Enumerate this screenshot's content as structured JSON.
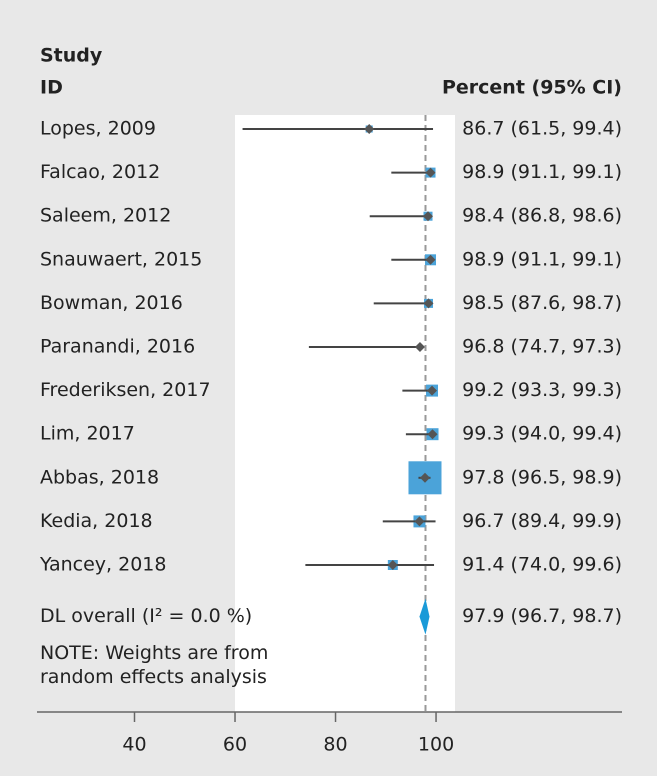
{
  "chart_data": {
    "type": "forest",
    "study_header": [
      "Study",
      "ID"
    ],
    "estimate_header": "Percent (95% CI)",
    "categories": [
      "Lopes, 2009",
      "Falcao, 2012",
      "Saleem, 2012",
      "Snauwaert, 2015",
      "Bowman, 2016",
      "Paranandi, 2016",
      "Frederiksen, 2017",
      "Lim, 2017",
      "Abbas, 2018",
      "Kedia, 2018",
      "Yancey, 2018"
    ],
    "values": [
      86.7,
      98.9,
      98.4,
      98.9,
      98.5,
      96.8,
      99.2,
      99.3,
      97.8,
      96.7,
      91.4
    ],
    "lower": [
      61.5,
      91.1,
      86.8,
      91.1,
      87.6,
      74.7,
      93.3,
      94.0,
      96.5,
      89.4,
      74.0
    ],
    "upper": [
      99.4,
      99.1,
      98.6,
      99.1,
      98.7,
      97.3,
      99.3,
      99.4,
      98.9,
      99.9,
      99.6
    ],
    "weights": [
      2.4,
      4.8,
      3.9,
      5.8,
      3.9,
      1.2,
      6.9,
      6.9,
      52.4,
      6.9,
      4.8
    ],
    "value_labels": [
      "86.7 (61.5, 99.4)",
      "98.9 (91.1, 99.1)",
      "98.4 (86.8, 98.6)",
      "98.9 (91.1, 99.1)",
      "98.5 (87.6, 98.7)",
      "96.8 (74.7, 97.3)",
      "99.2 (93.3, 99.3)",
      "99.3 (94.0, 99.4)",
      "97.8 (96.5, 98.9)",
      "96.7 (89.4, 99.9)",
      "91.4 (74.0, 99.6)"
    ],
    "overall": {
      "label": "DL overall (I² = 0.0 %)",
      "value": 97.9,
      "lower": 96.7,
      "upper": 98.7,
      "value_label": "97.9 (96.7, 98.7)"
    },
    "note": [
      "NOTE: Weights are from",
      "random effects analysis"
    ],
    "xlim": [
      20.6,
      137.0
    ],
    "xticks": [
      40,
      60,
      80,
      100
    ],
    "box_color": "#4ba3d9",
    "point_color": "#555555",
    "line_color": "#444444",
    "diamond_color": "#1a9ad8"
  }
}
